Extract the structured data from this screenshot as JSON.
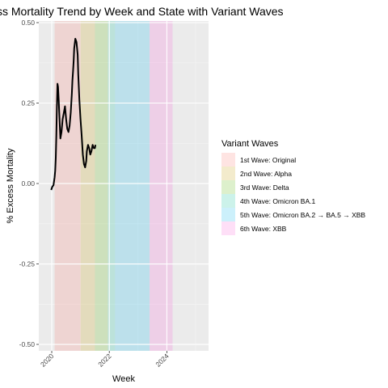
{
  "chart_data": {
    "type": "line",
    "title": "ss Mortality Trend by Week and State with Variant Waves",
    "xlabel": "Week",
    "ylabel": "% Excess Mortality",
    "xlim": [
      2019.55,
      2025.45
    ],
    "ylim": [
      -0.52,
      0.505
    ],
    "x_ticks": [
      {
        "value": 2020,
        "label": "2020"
      },
      {
        "value": 2022,
        "label": "2022"
      },
      {
        "value": 2024,
        "label": "2024"
      }
    ],
    "y_ticks": [
      {
        "value": -0.5,
        "label": "-0.50"
      },
      {
        "value": -0.25,
        "label": "-0.25"
      },
      {
        "value": 0,
        "label": "0.00"
      },
      {
        "value": 0.25,
        "label": "0.25"
      },
      {
        "value": 0.5,
        "label": "0.50"
      }
    ],
    "grid": true,
    "legend": {
      "title": "Variant Waves",
      "placement": "right",
      "items": [
        {
          "label": "1st Wave: Original",
          "color": "#F8766D"
        },
        {
          "label": "2nd Wave: Alpha",
          "color": "#C49A00"
        },
        {
          "label": "3rd Wave: Delta",
          "color": "#53B400"
        },
        {
          "label": "4th Wave: Omicron BA.1",
          "color": "#00C094"
        },
        {
          "label": "5th Wave: Omicron BA.2 → BA.5 → XBB",
          "color": "#00B6EB"
        },
        {
          "label": "6th Wave: XBB",
          "color": "#FB61D7"
        }
      ]
    },
    "waves": [
      {
        "label": "1st Wave: Original",
        "start": 2020.1,
        "end": 2021.0,
        "color": "#F8766D"
      },
      {
        "label": "2nd Wave: Alpha",
        "start": 2021.0,
        "end": 2021.5,
        "color": "#C49A00"
      },
      {
        "label": "3rd Wave: Delta",
        "start": 2021.5,
        "end": 2021.95,
        "color": "#53B400"
      },
      {
        "label": "4th Wave: Omicron BA.1",
        "start": 2021.95,
        "end": 2022.2,
        "color": "#00C094"
      },
      {
        "label": "5th Wave: Omicron BA.2 → BA.5 → XBB",
        "start": 2022.2,
        "end": 2023.4,
        "color": "#00B6EB"
      },
      {
        "label": "6th Wave: XBB",
        "start": 2023.4,
        "end": 2024.2,
        "color": "#FB61D7"
      }
    ],
    "series": [
      {
        "color": "#000000",
        "x": [
          2019.98,
          2020.02,
          2020.06,
          2020.1,
          2020.12,
          2020.14,
          2020.16,
          2020.18,
          2020.2,
          2020.22,
          2020.24,
          2020.26,
          2020.28,
          2020.3,
          2020.34,
          2020.38,
          2020.42,
          2020.46,
          2020.5,
          2020.54,
          2020.58,
          2020.62,
          2020.66,
          2020.7,
          2020.72,
          2020.74,
          2020.76,
          2020.78,
          2020.82,
          2020.86,
          2020.9,
          2020.92,
          2020.94,
          2020.96,
          2020.98,
          2021.0,
          2021.04,
          2021.08,
          2021.12,
          2021.16,
          2021.2,
          2021.22,
          2021.26,
          2021.3,
          2021.34,
          2021.38,
          2021.42,
          2021.46,
          2021.5,
          2021.52
        ],
        "y": [
          -0.02,
          -0.01,
          -0.005,
          0.02,
          0.04,
          0.08,
          0.15,
          0.24,
          0.31,
          0.3,
          0.26,
          0.22,
          0.18,
          0.14,
          0.16,
          0.2,
          0.22,
          0.24,
          0.2,
          0.17,
          0.16,
          0.18,
          0.22,
          0.28,
          0.32,
          0.35,
          0.38,
          0.42,
          0.45,
          0.44,
          0.4,
          0.34,
          0.3,
          0.26,
          0.23,
          0.2,
          0.15,
          0.09,
          0.06,
          0.05,
          0.07,
          0.1,
          0.12,
          0.11,
          0.09,
          0.1,
          0.12,
          0.11,
          0.11,
          0.12
        ]
      }
    ]
  }
}
